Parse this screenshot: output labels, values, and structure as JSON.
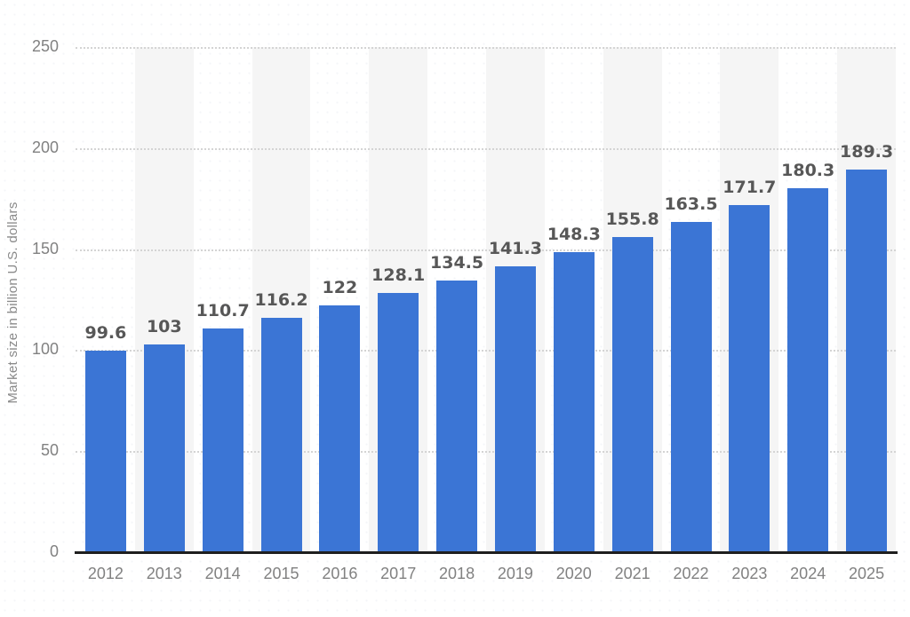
{
  "chart_data": {
    "type": "bar",
    "title": "",
    "xlabel": "",
    "ylabel": "Market size in billion U.S. dollars",
    "categories": [
      "2012",
      "2013",
      "2014",
      "2015",
      "2016",
      "2017",
      "2018",
      "2019",
      "2020",
      "2021",
      "2022",
      "2023",
      "2024",
      "2025"
    ],
    "values": [
      99.6,
      103,
      110.7,
      116.2,
      122,
      128.1,
      134.5,
      141.3,
      148.3,
      155.8,
      163.5,
      171.7,
      180.3,
      189.3
    ],
    "value_labels": [
      "99.6",
      "103",
      "110.7",
      "116.2",
      "122",
      "128.1",
      "134.5",
      "141.3",
      "148.3",
      "155.8",
      "163.5",
      "171.7",
      "180.3",
      "189.3"
    ],
    "ylim": [
      0,
      250
    ],
    "y_ticks": [
      0,
      50,
      100,
      150,
      200,
      250
    ],
    "grid": "horizontal dotted lines at every y tick",
    "legend": "none",
    "background_bands": "light gray vertical band behind every second year column starting at 2013",
    "colors": {
      "bar": "#3b75d5",
      "band": "#f5f5f5",
      "gridline": "#d4d4d4",
      "axis_line": "#1f1f1f",
      "value_label": "#575757",
      "tick_label": "#818181",
      "axis_title": "#8a8a8a",
      "background": "#ffffff"
    }
  }
}
